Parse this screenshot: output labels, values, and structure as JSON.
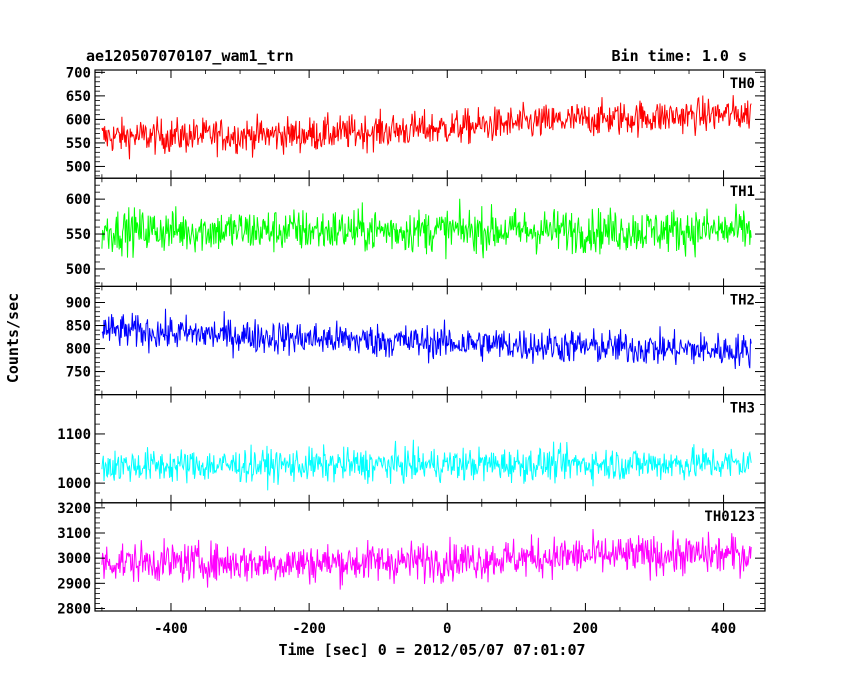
{
  "header": {
    "title": "ae120507070107_wam1_trn",
    "bin_time": "Bin time: 1.0 s"
  },
  "chart_data": {
    "type": "line",
    "xlabel": "Time [sec] 0 = 2012/05/07 07:01:07",
    "ylabel": "Counts/sec",
    "xlim": [
      -510,
      460
    ],
    "x_ticks": [
      -400,
      -200,
      0,
      200,
      400
    ],
    "x_range_data": [
      -500,
      440
    ],
    "grid": false,
    "panels": [
      {
        "name": "TH0",
        "color": "#ff0000",
        "ylim": [
          475,
          705
        ],
        "y_ticks": [
          500,
          550,
          600,
          650,
          700
        ],
        "trend": [
          [
            -500,
            563
          ],
          [
            -200,
            568
          ],
          [
            0,
            582
          ],
          [
            200,
            600
          ],
          [
            440,
            612
          ]
        ],
        "noise": 26
      },
      {
        "name": "TH1",
        "color": "#00ff00",
        "ylim": [
          475,
          630
        ],
        "y_ticks": [
          500,
          550,
          600
        ],
        "trend": [
          [
            -500,
            555
          ],
          [
            440,
            555
          ]
        ],
        "noise": 22
      },
      {
        "name": "TH2",
        "color": "#0000ff",
        "ylim": [
          700,
          935
        ],
        "y_ticks": [
          750,
          800,
          850,
          900
        ],
        "trend": [
          [
            -500,
            840
          ],
          [
            -200,
            822
          ],
          [
            100,
            808
          ],
          [
            440,
            795
          ]
        ],
        "noise": 26
      },
      {
        "name": "TH3",
        "color": "#00ffff",
        "ylim": [
          960,
          1180
        ],
        "y_ticks": [
          1000,
          1100
        ],
        "trend": [
          [
            -500,
            1035
          ],
          [
            440,
            1040
          ]
        ],
        "noise": 24
      },
      {
        "name": "TH0123",
        "color": "#ff00ff",
        "ylim": [
          2790,
          3220
        ],
        "y_ticks": [
          2800,
          2900,
          3000,
          3100,
          3200
        ],
        "trend": [
          [
            -500,
            2985
          ],
          [
            -200,
            2980
          ],
          [
            0,
            2990
          ],
          [
            200,
            3010
          ],
          [
            440,
            3015
          ]
        ],
        "noise": 55
      }
    ]
  }
}
